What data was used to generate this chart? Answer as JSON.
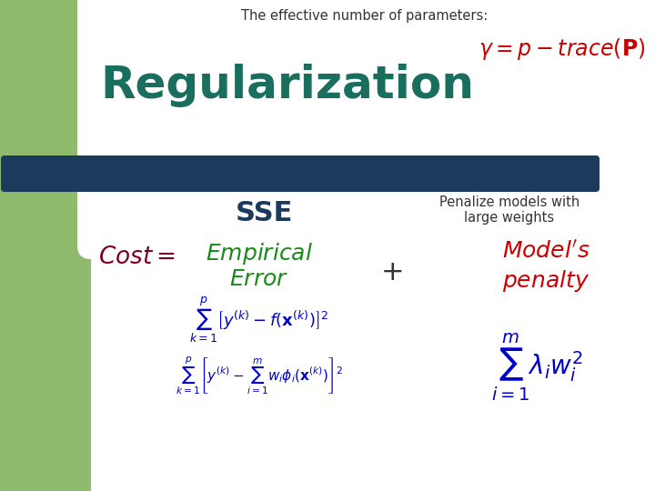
{
  "bg_color": "#ffffff",
  "green_sidebar_color": "#8fba6e",
  "teal_bar_color": "#1b3a5c",
  "title_text": "The effective number of parameters:",
  "title_color": "#333333",
  "gamma_formula": "$\\gamma = p - trace(\\mathbf{P})$",
  "gamma_color": "#cc0000",
  "regularization_text": "Regularization",
  "regularization_color": "#1a6e5e",
  "sse_text": "SSE",
  "sse_color": "#1b3a5c",
  "penalize_line1": "Penalize models with",
  "penalize_line2": "large weights",
  "penalize_color": "#333333",
  "cost_color": "#7b0020",
  "empirical_color": "#1a8a1a",
  "plus_color": "#333333",
  "models_color": "#cc0000",
  "formula_color": "#0000cc",
  "formula3_lambda_color": "#7b0020",
  "formula3_w_color": "#cc0000"
}
